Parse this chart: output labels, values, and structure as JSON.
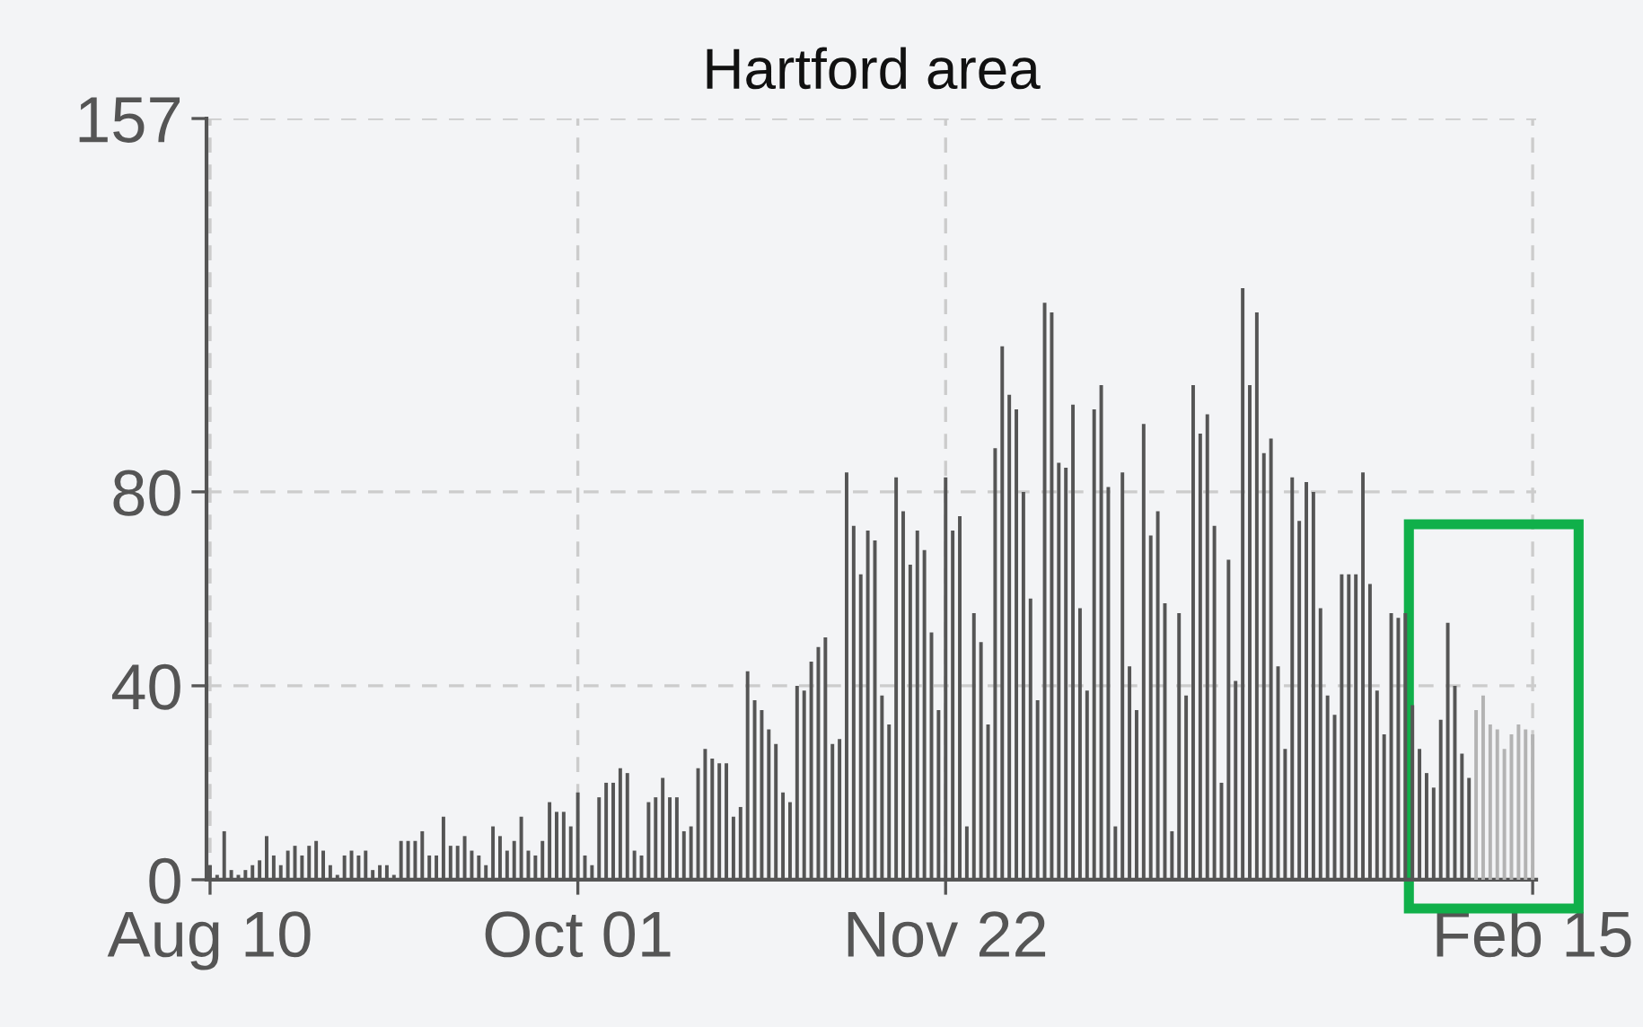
{
  "chart_data": {
    "type": "bar",
    "title": "Hartford area",
    "categories": [
      "Aug 10",
      null,
      null,
      null,
      null,
      null,
      null,
      null,
      null,
      null,
      null,
      null,
      null,
      null,
      null,
      null,
      null,
      null,
      null,
      null,
      null,
      null,
      null,
      null,
      null,
      null,
      null,
      null,
      null,
      null,
      null,
      null,
      null,
      null,
      null,
      null,
      null,
      null,
      null,
      null,
      null,
      null,
      null,
      null,
      null,
      null,
      null,
      null,
      null,
      null,
      null,
      null,
      "Oct 01",
      null,
      null,
      null,
      null,
      null,
      null,
      null,
      null,
      null,
      null,
      null,
      null,
      null,
      null,
      null,
      null,
      null,
      null,
      null,
      null,
      null,
      null,
      null,
      null,
      null,
      null,
      null,
      null,
      null,
      null,
      null,
      null,
      null,
      null,
      null,
      null,
      null,
      null,
      null,
      null,
      null,
      null,
      null,
      null,
      null,
      null,
      null,
      null,
      null,
      null,
      null,
      "Nov 22",
      null,
      null,
      null,
      null,
      null,
      null,
      null,
      null,
      null,
      null,
      null,
      null,
      null,
      null,
      null,
      null,
      null,
      null,
      null,
      null,
      null,
      null,
      null,
      null,
      null,
      null,
      null,
      null,
      null,
      null,
      null,
      null,
      null,
      null,
      null,
      null,
      null,
      null,
      null,
      null,
      null,
      null,
      null,
      null,
      null,
      null,
      null,
      null,
      null,
      null,
      null,
      null,
      null,
      null,
      null,
      null,
      null,
      null,
      null,
      null,
      null,
      null,
      null,
      null,
      null,
      null,
      null,
      null,
      null,
      null,
      null,
      null,
      null,
      null,
      null,
      null,
      null,
      null,
      null,
      null,
      null,
      null,
      "Feb 15"
    ],
    "values": [
      3,
      1,
      10,
      2,
      1,
      2,
      3,
      4,
      9,
      5,
      3,
      6,
      7,
      5,
      7,
      8,
      6,
      3,
      1,
      5,
      6,
      5,
      6,
      2,
      3,
      3,
      1,
      8,
      8,
      8,
      10,
      5,
      5,
      13,
      7,
      7,
      9,
      6,
      5,
      3,
      11,
      9,
      6,
      8,
      13,
      6,
      5,
      8,
      16,
      14,
      14,
      11,
      18,
      5,
      3,
      17,
      20,
      20,
      23,
      22,
      6,
      5,
      16,
      17,
      21,
      17,
      17,
      10,
      11,
      23,
      27,
      25,
      24,
      24,
      13,
      15,
      43,
      37,
      35,
      31,
      28,
      18,
      16,
      40,
      39,
      45,
      48,
      50,
      28,
      29,
      84,
      73,
      63,
      72,
      70,
      38,
      32,
      83,
      76,
      65,
      72,
      68,
      51,
      35,
      83,
      72,
      75,
      11,
      55,
      49,
      32,
      89,
      110,
      100,
      97,
      80,
      58,
      37,
      119,
      117,
      86,
      85,
      98,
      56,
      39,
      97,
      102,
      81,
      11,
      84,
      44,
      35,
      94,
      71,
      76,
      57,
      10,
      55,
      38,
      102,
      92,
      96,
      73,
      20,
      66,
      41,
      122,
      102,
      117,
      88,
      91,
      44,
      27,
      83,
      74,
      82,
      80,
      56,
      38,
      34,
      63,
      63,
      63,
      84,
      61,
      39,
      30,
      55,
      54,
      55,
      36,
      27,
      22,
      19,
      33,
      53,
      40,
      26,
      21,
      35,
      38,
      32,
      31,
      27,
      30,
      32,
      31,
      30
    ],
    "colors": [
      "#555555",
      "#555555",
      "#555555",
      "#555555",
      "#555555",
      "#555555",
      "#555555",
      "#555555",
      "#555555",
      "#555555",
      "#555555",
      "#555555",
      "#555555",
      "#555555",
      "#555555",
      "#555555",
      "#555555",
      "#555555",
      "#555555",
      "#555555",
      "#555555",
      "#555555",
      "#555555",
      "#555555",
      "#555555",
      "#555555",
      "#555555",
      "#555555",
      "#555555",
      "#555555",
      "#555555",
      "#555555",
      "#555555",
      "#555555",
      "#555555",
      "#555555",
      "#555555",
      "#555555",
      "#555555",
      "#555555",
      "#555555",
      "#555555",
      "#555555",
      "#555555",
      "#555555",
      "#555555",
      "#555555",
      "#555555",
      "#555555",
      "#555555",
      "#555555",
      "#555555",
      "#555555",
      "#555555",
      "#555555",
      "#555555",
      "#555555",
      "#555555",
      "#555555",
      "#555555",
      "#555555",
      "#555555",
      "#555555",
      "#555555",
      "#555555",
      "#555555",
      "#555555",
      "#555555",
      "#555555",
      "#555555",
      "#555555",
      "#555555",
      "#555555",
      "#555555",
      "#555555",
      "#555555",
      "#555555",
      "#555555",
      "#555555",
      "#555555",
      "#555555",
      "#555555",
      "#555555",
      "#555555",
      "#555555",
      "#555555",
      "#555555",
      "#555555",
      "#555555",
      "#555555",
      "#555555",
      "#555555",
      "#555555",
      "#555555",
      "#555555",
      "#555555",
      "#555555",
      "#555555",
      "#555555",
      "#555555",
      "#555555",
      "#555555",
      "#555555",
      "#555555",
      "#555555",
      "#555555",
      "#555555",
      "#555555",
      "#555555",
      "#555555",
      "#555555",
      "#555555",
      "#555555",
      "#555555",
      "#555555",
      "#555555",
      "#555555",
      "#555555",
      "#555555",
      "#555555",
      "#555555",
      "#555555",
      "#555555",
      "#555555",
      "#555555",
      "#555555",
      "#555555",
      "#555555",
      "#555555",
      "#555555",
      "#555555",
      "#555555",
      "#555555",
      "#555555",
      "#555555",
      "#555555",
      "#555555",
      "#555555",
      "#555555",
      "#555555",
      "#555555",
      "#555555",
      "#555555",
      "#555555",
      "#555555",
      "#555555",
      "#555555",
      "#555555",
      "#555555",
      "#555555",
      "#555555",
      "#555555",
      "#555555",
      "#555555",
      "#555555",
      "#555555",
      "#555555",
      "#555555",
      "#555555",
      "#555555",
      "#555555",
      "#555555",
      "#555555",
      "#555555",
      "#555555",
      "#555555",
      "#555555",
      "#555555",
      "#555555",
      "#555555",
      "#555555",
      "#555555",
      "#555555",
      "#555555",
      "#555555",
      "#555555",
      "#555555",
      "#555555",
      "#555555",
      "#b3b3b3",
      "#b3b3b3",
      "#b3b3b3",
      "#b3b3b3",
      "#b3b3b3",
      "#b3b3b3",
      "#b3b3b3",
      "#b3b3b3",
      "#b3b3b3"
    ],
    "ylim": [
      0,
      157
    ],
    "yticks": [
      0,
      40,
      80,
      157
    ],
    "grid": true
  }
}
